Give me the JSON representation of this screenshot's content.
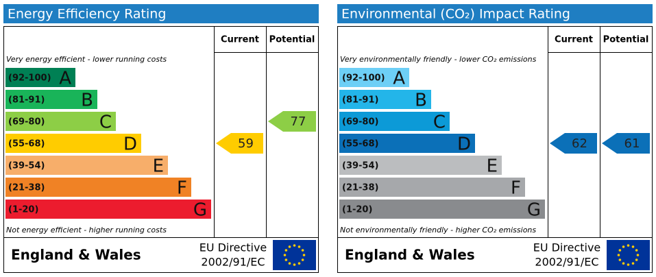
{
  "panels": [
    {
      "title": "Energy Efficiency Rating",
      "headers": [
        "Current",
        "Potential"
      ],
      "top_note": "Very energy efficient - lower running costs",
      "bottom_note": "Not energy efficient - higher running costs",
      "bands": [
        {
          "range": "(92-100)",
          "letter": "A",
          "color": "#008054"
        },
        {
          "range": "(81-91)",
          "letter": "B",
          "color": "#19b459"
        },
        {
          "range": "(69-80)",
          "letter": "C",
          "color": "#8dce46"
        },
        {
          "range": "(55-68)",
          "letter": "D",
          "color": "#ffcc00"
        },
        {
          "range": "(39-54)",
          "letter": "E",
          "color": "#f7ae6a"
        },
        {
          "range": "(21-38)",
          "letter": "F",
          "color": "#f08225"
        },
        {
          "range": "(1-20)",
          "letter": "G",
          "color": "#ec1c2e"
        }
      ],
      "current": 59,
      "potential": 77,
      "footer": "England & Wales",
      "directive": [
        "EU Directive",
        "2002/91/EC"
      ]
    },
    {
      "title": "Environmental (CO₂) Impact Rating",
      "headers": [
        "Current",
        "Potential"
      ],
      "top_note": "Very environmentally friendly - lower CO₂ emissions",
      "bottom_note": "Not environmentally friendly - higher CO₂ emissions",
      "bands": [
        {
          "range": "(92-100)",
          "letter": "A",
          "color": "#6dcff6"
        },
        {
          "range": "(81-91)",
          "letter": "B",
          "color": "#23b5e9"
        },
        {
          "range": "(69-80)",
          "letter": "C",
          "color": "#0c9ad7"
        },
        {
          "range": "(55-68)",
          "letter": "D",
          "color": "#0b70b8"
        },
        {
          "range": "(39-54)",
          "letter": "E",
          "color": "#bbbdbf"
        },
        {
          "range": "(21-38)",
          "letter": "F",
          "color": "#a6a8ab"
        },
        {
          "range": "(1-20)",
          "letter": "G",
          "color": "#898b8e"
        }
      ],
      "current": 62,
      "potential": 61,
      "footer": "England & Wales",
      "directive": [
        "EU Directive",
        "2002/91/EC"
      ]
    }
  ]
}
